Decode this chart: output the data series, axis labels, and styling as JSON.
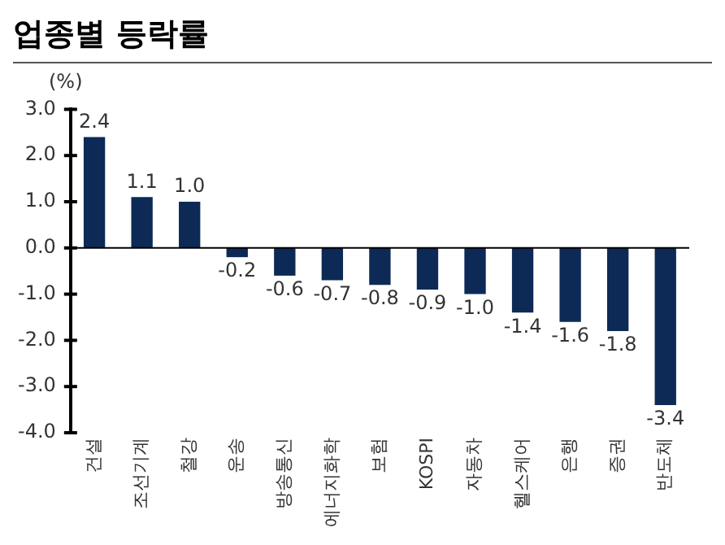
{
  "chart_data": {
    "type": "bar",
    "title": "업종별 등락률",
    "ylabel": "(%)",
    "categories": [
      "건설",
      "조선기계",
      "철강",
      "운송",
      "방송통신",
      "에너지화학",
      "보험",
      "KOSPI",
      "자동차",
      "헬스케어",
      "은행",
      "증권",
      "반도체"
    ],
    "values": [
      2.4,
      1.1,
      1.0,
      -0.2,
      -0.6,
      -0.7,
      -0.8,
      -0.9,
      -1.0,
      -1.4,
      -1.6,
      -1.8,
      -3.4
    ],
    "value_labels": [
      "2.4",
      "1.1",
      "1.0",
      "-0.2",
      "-0.6",
      "-0.7",
      "-0.8",
      "-0.9",
      "-1.0",
      "-1.4",
      "-1.6",
      "-1.8",
      "-3.4"
    ],
    "color": "#0c2a55",
    "ylim": [
      -4,
      3
    ],
    "yticks": [
      {
        "value": 3,
        "label": "3.0"
      },
      {
        "value": 2,
        "label": "2.0"
      },
      {
        "value": 1,
        "label": "1.0"
      },
      {
        "value": 0,
        "label": "0.0"
      },
      {
        "value": -1,
        "label": "-1.0"
      },
      {
        "value": -2,
        "label": "-2.0"
      },
      {
        "value": -3,
        "label": "-3.0"
      },
      {
        "value": -4,
        "label": "-4.0"
      }
    ],
    "legend": false
  }
}
